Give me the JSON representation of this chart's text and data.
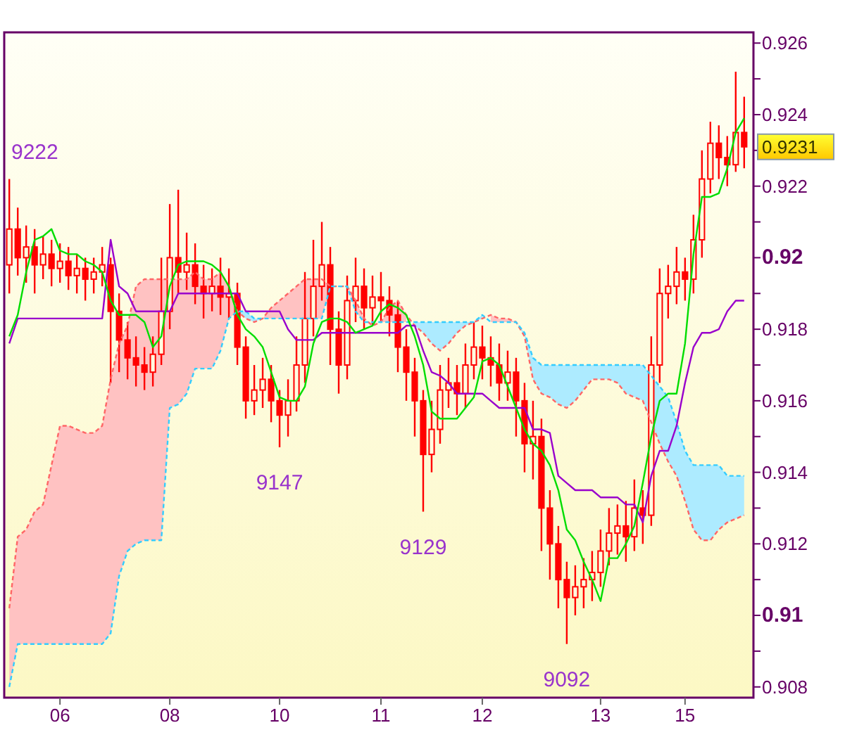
{
  "chart_data": {
    "type": "candlestick",
    "color": "#ff0000",
    "categories": [
      null,
      null,
      null,
      null,
      null,
      null,
      "06",
      null,
      null,
      null,
      null,
      null,
      null,
      null,
      null,
      null,
      null,
      null,
      null,
      "08",
      null,
      null,
      null,
      null,
      null,
      null,
      null,
      null,
      null,
      null,
      null,
      null,
      "10",
      null,
      null,
      null,
      null,
      null,
      null,
      null,
      null,
      null,
      null,
      null,
      "11",
      null,
      null,
      null,
      null,
      null,
      null,
      null,
      null,
      null,
      null,
      null,
      "12",
      null,
      null,
      null,
      null,
      null,
      null,
      null,
      null,
      null,
      null,
      null,
      null,
      null,
      "13",
      null,
      null,
      null,
      null,
      null,
      null,
      null,
      null,
      null,
      "15",
      null,
      null,
      null,
      null,
      null,
      null,
      null
    ],
    "ylim": [
      0.9077,
      0.9263
    ],
    "yticks": [
      0.908,
      {
        "value": 0.909,
        "label": null
      },
      0.91,
      {
        "value": 0.911,
        "label": null
      },
      0.912,
      {
        "value": 0.913,
        "label": null
      },
      0.914,
      {
        "value": 0.915,
        "label": null
      },
      0.916,
      {
        "value": 0.917,
        "label": null
      },
      0.918,
      {
        "value": 0.919,
        "label": null
      },
      0.92,
      {
        "value": 0.921,
        "label": null
      },
      0.922,
      {
        "value": 0.923,
        "label": null
      },
      {
        "value": 0.9231,
        "label": "0.9231"
      },
      0.924,
      {
        "value": 0.925,
        "label": null
      },
      0.926
    ],
    "ohlc": [
      [
        0.9198,
        0.9222,
        0.919,
        0.9208
      ],
      [
        0.9208,
        0.9214,
        0.9195,
        0.92
      ],
      [
        0.92,
        0.9209,
        0.9193,
        0.9203
      ],
      [
        0.9203,
        0.9208,
        0.919,
        0.9198
      ],
      [
        0.9198,
        0.9206,
        0.9194,
        0.9201
      ],
      [
        0.9201,
        0.9205,
        0.9192,
        0.9197
      ],
      [
        0.9197,
        0.9204,
        0.9193,
        0.9199
      ],
      [
        0.9199,
        0.9203,
        0.9191,
        0.9195
      ],
      [
        0.9195,
        0.9201,
        0.919,
        0.9197
      ],
      [
        0.9197,
        0.92,
        0.9188,
        0.9194
      ],
      [
        0.9194,
        0.92,
        0.919,
        0.9196
      ],
      [
        0.9196,
        0.9203,
        0.9192,
        0.9198
      ],
      [
        0.9198,
        0.92,
        0.9165,
        0.9185
      ],
      [
        0.9185,
        0.919,
        0.9168,
        0.9177
      ],
      [
        0.9177,
        0.9182,
        0.9166,
        0.9172
      ],
      [
        0.9172,
        0.9178,
        0.9164,
        0.917
      ],
      [
        0.917,
        0.9175,
        0.9163,
        0.9168
      ],
      [
        0.9168,
        0.9178,
        0.9164,
        0.9173
      ],
      [
        0.9173,
        0.92,
        0.917,
        0.9185
      ],
      [
        0.9185,
        0.9215,
        0.918,
        0.92
      ],
      [
        0.92,
        0.9219,
        0.919,
        0.9196
      ],
      [
        0.9196,
        0.9207,
        0.9191,
        0.9198
      ],
      [
        0.9198,
        0.9204,
        0.9187,
        0.9192
      ],
      [
        0.9192,
        0.9198,
        0.9183,
        0.919
      ],
      [
        0.919,
        0.9197,
        0.9185,
        0.9192
      ],
      [
        0.9192,
        0.92,
        0.9184,
        0.9189
      ],
      [
        0.9189,
        0.9197,
        0.9183,
        0.919
      ],
      [
        0.919,
        0.9193,
        0.917,
        0.9175
      ],
      [
        0.9175,
        0.9178,
        0.9155,
        0.916
      ],
      [
        0.916,
        0.917,
        0.9156,
        0.9163
      ],
      [
        0.9163,
        0.9172,
        0.9158,
        0.9166
      ],
      [
        0.9166,
        0.917,
        0.9154,
        0.916
      ],
      [
        0.916,
        0.9163,
        0.9147,
        0.9156
      ],
      [
        0.9156,
        0.9166,
        0.915,
        0.916
      ],
      [
        0.916,
        0.9178,
        0.9157,
        0.917
      ],
      [
        0.917,
        0.9196,
        0.9165,
        0.9183
      ],
      [
        0.9183,
        0.9205,
        0.9178,
        0.9192
      ],
      [
        0.9192,
        0.921,
        0.9188,
        0.9198
      ],
      [
        0.9198,
        0.9203,
        0.917,
        0.918
      ],
      [
        0.918,
        0.9185,
        0.9162,
        0.917
      ],
      [
        0.917,
        0.9195,
        0.9166,
        0.9188
      ],
      [
        0.9188,
        0.92,
        0.9182,
        0.9192
      ],
      [
        0.9192,
        0.9197,
        0.918,
        0.9186
      ],
      [
        0.9186,
        0.9195,
        0.9181,
        0.9189
      ],
      [
        0.9189,
        0.9196,
        0.9182,
        0.9188
      ],
      [
        0.9188,
        0.9192,
        0.9178,
        0.9184
      ],
      [
        0.9184,
        0.9188,
        0.9168,
        0.9175
      ],
      [
        0.9175,
        0.918,
        0.916,
        0.9168
      ],
      [
        0.9168,
        0.9172,
        0.915,
        0.916
      ],
      [
        0.916,
        0.9163,
        0.9129,
        0.9145
      ],
      [
        0.9145,
        0.916,
        0.914,
        0.9152
      ],
      [
        0.9152,
        0.917,
        0.9148,
        0.9163
      ],
      [
        0.9163,
        0.9172,
        0.9158,
        0.9165
      ],
      [
        0.9165,
        0.917,
        0.9156,
        0.9162
      ],
      [
        0.9162,
        0.9176,
        0.9158,
        0.917
      ],
      [
        0.917,
        0.9182,
        0.9166,
        0.9175
      ],
      [
        0.9175,
        0.9181,
        0.9166,
        0.9172
      ],
      [
        0.9172,
        0.9178,
        0.9164,
        0.917
      ],
      [
        0.917,
        0.9176,
        0.916,
        0.9165
      ],
      [
        0.9165,
        0.9174,
        0.916,
        0.9168
      ],
      [
        0.9168,
        0.9172,
        0.915,
        0.916
      ],
      [
        0.916,
        0.9165,
        0.914,
        0.9148
      ],
      [
        0.9148,
        0.916,
        0.9138,
        0.915
      ],
      [
        0.915,
        0.9155,
        0.9118,
        0.913
      ],
      [
        0.913,
        0.9135,
        0.911,
        0.912
      ],
      [
        0.912,
        0.9125,
        0.9102,
        0.911
      ],
      [
        0.911,
        0.9115,
        0.9092,
        0.9105
      ],
      [
        0.9105,
        0.9114,
        0.91,
        0.9108
      ],
      [
        0.9108,
        0.9116,
        0.9102,
        0.911
      ],
      [
        0.911,
        0.9118,
        0.9104,
        0.9112
      ],
      [
        0.9112,
        0.9124,
        0.9108,
        0.9118
      ],
      [
        0.9118,
        0.913,
        0.9114,
        0.9123
      ],
      [
        0.9123,
        0.9131,
        0.9117,
        0.9125
      ],
      [
        0.9125,
        0.9132,
        0.9115,
        0.9122
      ],
      [
        0.9122,
        0.9138,
        0.9118,
        0.913
      ],
      [
        0.913,
        0.9135,
        0.912,
        0.9128
      ],
      [
        0.9128,
        0.9178,
        0.9125,
        0.917
      ],
      [
        0.917,
        0.9197,
        0.9165,
        0.919
      ],
      [
        0.919,
        0.9198,
        0.9183,
        0.9192
      ],
      [
        0.9192,
        0.9203,
        0.9187,
        0.9196
      ],
      [
        0.9196,
        0.92,
        0.9188,
        0.9194
      ],
      [
        0.9194,
        0.9212,
        0.919,
        0.9205
      ],
      [
        0.9205,
        0.923,
        0.92,
        0.9222
      ],
      [
        0.9222,
        0.9238,
        0.9218,
        0.9232
      ],
      [
        0.9232,
        0.9237,
        0.9222,
        0.9228
      ],
      [
        0.9228,
        0.9234,
        0.922,
        0.9226
      ],
      [
        0.9226,
        0.9252,
        0.9224,
        0.9235
      ],
      [
        0.9235,
        0.9245,
        0.9225,
        0.9231
      ]
    ],
    "series": [
      {
        "type": "line",
        "color": "#ff6666",
        "line_style": "dashed",
        "values": [
          0.9102,
          0.9122,
          0.9124,
          0.9129,
          0.9131,
          0.9142,
          0.9153,
          0.9153,
          0.9152,
          0.9151,
          0.9151,
          0.9153,
          0.9166,
          0.9176,
          0.9181,
          0.9192,
          0.9194,
          0.9194,
          0.9194,
          0.9194,
          0.9194,
          0.9194,
          0.9196,
          0.9194,
          0.9194,
          0.9196,
          0.9192,
          0.9185,
          0.9183,
          0.9182,
          0.9183,
          0.9186,
          0.9188,
          0.919,
          0.9192,
          0.9194,
          0.9194,
          0.9194,
          0.9192,
          0.9192,
          0.9192,
          0.9188,
          0.9183,
          0.9181,
          0.9182,
          0.9186,
          0.9188,
          0.9184,
          0.9181,
          0.9179,
          0.9176,
          0.9174,
          0.9176,
          0.9179,
          0.9181,
          0.9182,
          0.9183,
          0.9184,
          0.9183,
          0.9183,
          0.9182,
          0.9178,
          0.9166,
          0.9162,
          0.9161,
          0.9159,
          0.9158,
          0.916,
          0.9163,
          0.9166,
          0.9166,
          0.9166,
          0.9165,
          0.9162,
          0.9161,
          0.916,
          0.9154,
          0.9148,
          0.9143,
          0.9139,
          0.9132,
          0.9124,
          0.9121,
          0.9121,
          0.9124,
          0.9126,
          0.9127,
          0.9128
        ],
        "upper": [
          0.9102,
          0.9122,
          0.9124,
          0.9129,
          0.9131,
          0.9142,
          0.9153,
          0.9153,
          0.9152,
          0.9151,
          0.9151,
          0.9153,
          0.9166,
          0.9176,
          0.9181,
          0.9192,
          0.9194,
          0.9194,
          0.9194,
          0.9194,
          0.9194,
          0.9194,
          0.9196,
          0.9194,
          0.9194,
          0.9196,
          0.9192,
          0.9185,
          null,
          null,
          0.9183,
          0.9186,
          0.9188,
          0.919,
          0.9192,
          0.9194,
          0.9194,
          0.9194,
          0.9192,
          0.9192,
          0.9192,
          0.9188,
          0.9183,
          null,
          0.9182,
          0.9186,
          0.9188,
          0.9184,
          null,
          null,
          null,
          null,
          null,
          null,
          null,
          null,
          null,
          0.9184,
          0.9183,
          0.9183,
          0.9182,
          null,
          null,
          null,
          null,
          null,
          null,
          null,
          null,
          null,
          null,
          null,
          null,
          null,
          null,
          null,
          null,
          null,
          null,
          null,
          null,
          null,
          null,
          null,
          null,
          null,
          null,
          null
        ],
        "lower": [
          0.908,
          0.9092,
          0.9092,
          0.9092,
          0.9092,
          0.9092,
          0.9092,
          0.9092,
          0.9092,
          0.9092,
          0.9092,
          0.9092,
          0.9095,
          0.9111,
          0.9118,
          0.912,
          0.9121,
          0.9121,
          0.9121,
          0.9158,
          0.9159,
          0.9162,
          0.9169,
          0.9169,
          0.9169,
          0.9174,
          0.9183,
          0.9185,
          null,
          null,
          0.9183,
          0.9183,
          0.9183,
          0.9183,
          0.9183,
          0.9183,
          0.9183,
          0.9183,
          0.9192,
          0.9192,
          0.9192,
          0.9185,
          0.9182,
          null,
          0.9182,
          0.9182,
          0.9182,
          0.9182,
          null,
          null,
          null,
          null,
          null,
          null,
          null,
          null,
          null,
          0.9182,
          0.9182,
          0.9182,
          0.9182,
          null,
          null,
          null,
          null,
          null,
          null,
          null,
          null,
          null,
          null,
          null,
          null,
          null,
          null,
          null,
          null,
          null,
          null,
          null,
          null,
          null,
          null,
          null,
          null,
          null,
          null,
          null
        ]
      },
      {
        "type": "line",
        "color": "#33ccff",
        "line_style": "dashed",
        "values": [
          0.908,
          0.9092,
          0.9092,
          0.9092,
          0.9092,
          0.9092,
          0.9092,
          0.9092,
          0.9092,
          0.9092,
          0.9092,
          0.9092,
          0.9095,
          0.9111,
          0.9118,
          0.912,
          0.9121,
          0.9121,
          0.9121,
          0.9158,
          0.9159,
          0.9162,
          0.9169,
          0.9169,
          0.9169,
          0.9174,
          0.9183,
          0.9185,
          0.9185,
          0.9183,
          0.9183,
          0.9183,
          0.9183,
          0.9183,
          0.9183,
          0.9183,
          0.9183,
          0.9183,
          0.9192,
          0.9192,
          0.9192,
          0.9185,
          0.9182,
          0.9182,
          0.9182,
          0.9182,
          0.9182,
          0.9182,
          0.9182,
          0.9182,
          0.9182,
          0.9182,
          0.9182,
          0.9182,
          0.9182,
          0.9182,
          0.9184,
          0.9182,
          0.9182,
          0.9182,
          0.9182,
          0.9179,
          0.9172,
          0.917,
          0.917,
          0.917,
          0.917,
          0.917,
          0.917,
          0.917,
          0.917,
          0.917,
          0.917,
          0.917,
          0.917,
          0.917,
          0.9167,
          0.9164,
          0.9161,
          0.9154,
          0.9146,
          0.9142,
          0.9142,
          0.9142,
          0.9142,
          0.9139,
          0.9139,
          0.9139
        ],
        "upper": [
          null,
          null,
          null,
          null,
          null,
          null,
          null,
          null,
          null,
          null,
          null,
          null,
          null,
          null,
          null,
          null,
          null,
          null,
          null,
          null,
          null,
          null,
          null,
          null,
          null,
          null,
          null,
          0.9185,
          0.9185,
          0.9183,
          0.9183,
          null,
          null,
          null,
          null,
          null,
          null,
          null,
          null,
          null,
          null,
          null,
          null,
          null,
          null,
          null,
          null,
          null,
          0.9182,
          0.9182,
          0.9182,
          0.9182,
          0.9182,
          0.9182,
          0.9182,
          0.9182,
          0.9184,
          null,
          null,
          null,
          0.9182,
          0.9179,
          0.9172,
          0.917,
          0.917,
          0.917,
          0.917,
          0.917,
          0.917,
          0.917,
          0.917,
          0.917,
          0.917,
          0.917,
          0.917,
          0.917,
          0.9167,
          0.9164,
          0.9161,
          0.9154,
          0.9146,
          0.9142,
          0.9142,
          0.9142,
          0.9142,
          0.9139,
          0.9139,
          0.9139
        ],
        "lower": [
          null,
          null,
          null,
          null,
          null,
          null,
          null,
          null,
          null,
          null,
          null,
          null,
          null,
          null,
          null,
          null,
          null,
          null,
          null,
          null,
          null,
          null,
          null,
          null,
          null,
          null,
          null,
          0.9185,
          0.9183,
          0.9182,
          0.9183,
          null,
          null,
          null,
          null,
          null,
          null,
          null,
          null,
          null,
          null,
          null,
          null,
          null,
          null,
          null,
          null,
          null,
          0.9181,
          0.9179,
          0.9176,
          0.9174,
          0.9176,
          0.9179,
          0.9181,
          0.9182,
          0.9183,
          null,
          null,
          null,
          0.9182,
          0.9178,
          0.9166,
          0.9162,
          0.9161,
          0.9159,
          0.9158,
          0.916,
          0.9163,
          0.9166,
          0.9166,
          0.9166,
          0.9165,
          0.9162,
          0.9161,
          0.916,
          0.9154,
          0.9148,
          0.9143,
          0.9139,
          0.9132,
          0.9124,
          0.9121,
          0.9121,
          0.9124,
          0.9126,
          0.9127,
          0.9128
        ]
      },
      {
        "type": "line",
        "color": "#9900cc",
        "values": [
          0.9176,
          0.9183,
          0.9183,
          0.9183,
          0.9183,
          0.9183,
          0.9183,
          0.9183,
          0.9183,
          0.9183,
          0.9183,
          0.9183,
          0.9205,
          0.9192,
          0.919,
          0.9185,
          0.9185,
          0.9185,
          0.9185,
          0.9185,
          0.919,
          0.919,
          0.919,
          0.919,
          0.919,
          0.919,
          0.919,
          0.919,
          0.9185,
          0.9185,
          0.9185,
          0.9185,
          0.9185,
          0.918,
          0.9177,
          0.9177,
          0.9177,
          0.9179,
          0.9179,
          0.9179,
          0.9179,
          0.9179,
          0.9179,
          0.9179,
          0.9179,
          0.9179,
          0.9179,
          0.9181,
          0.9181,
          0.9174,
          0.9168,
          0.9167,
          0.9165,
          0.9162,
          0.9162,
          0.9162,
          0.9162,
          0.916,
          0.9158,
          0.9158,
          0.9158,
          0.9158,
          0.9152,
          0.9152,
          0.9151,
          0.9139,
          0.9137,
          0.9135,
          0.9135,
          0.9135,
          0.9133,
          0.9133,
          0.9133,
          0.9131,
          0.9131,
          0.9126,
          0.9139,
          0.9146,
          0.9146,
          0.9153,
          0.9165,
          0.9175,
          0.9179,
          0.9179,
          0.918,
          0.9185,
          0.9188,
          0.9188
        ]
      },
      {
        "type": "line",
        "color": "#00dd00",
        "values": [
          0.9178,
          0.9184,
          0.9196,
          0.9205,
          0.9206,
          0.9208,
          0.9202,
          0.9201,
          0.9201,
          0.9199,
          0.9198,
          0.9196,
          0.9188,
          0.9184,
          0.9184,
          0.9184,
          0.9182,
          0.9175,
          0.9178,
          0.9192,
          0.9198,
          0.9199,
          0.9199,
          0.9199,
          0.9198,
          0.9196,
          0.9192,
          0.9184,
          0.918,
          0.9178,
          0.9175,
          0.9168,
          0.9161,
          0.916,
          0.916,
          0.9164,
          0.9176,
          0.9182,
          0.9183,
          0.9183,
          0.9182,
          0.9179,
          0.918,
          0.9181,
          0.9185,
          0.9187,
          0.9186,
          0.9184,
          0.9178,
          0.917,
          0.9157,
          0.9155,
          0.9155,
          0.9155,
          0.9158,
          0.9161,
          0.9171,
          0.9172,
          0.917,
          0.9164,
          0.9158,
          0.9152,
          0.9148,
          0.9146,
          0.9142,
          0.9135,
          0.9124,
          0.9121,
          0.9115,
          0.911,
          0.9104,
          0.9116,
          0.9116,
          0.912,
          0.9125,
          0.9137,
          0.915,
          0.916,
          0.9162,
          0.9162,
          0.9176,
          0.9201,
          0.9217,
          0.9217,
          0.9218,
          0.9225,
          0.9235,
          0.9239
        ]
      }
    ],
    "annotations": [
      "9222",
      {
        "text": "9147",
        "y": 0.9147
      },
      {
        "text": "9129",
        "y": 0.9129
      },
      {
        "text": "9092",
        "y": 0.9092
      }
    ]
  }
}
